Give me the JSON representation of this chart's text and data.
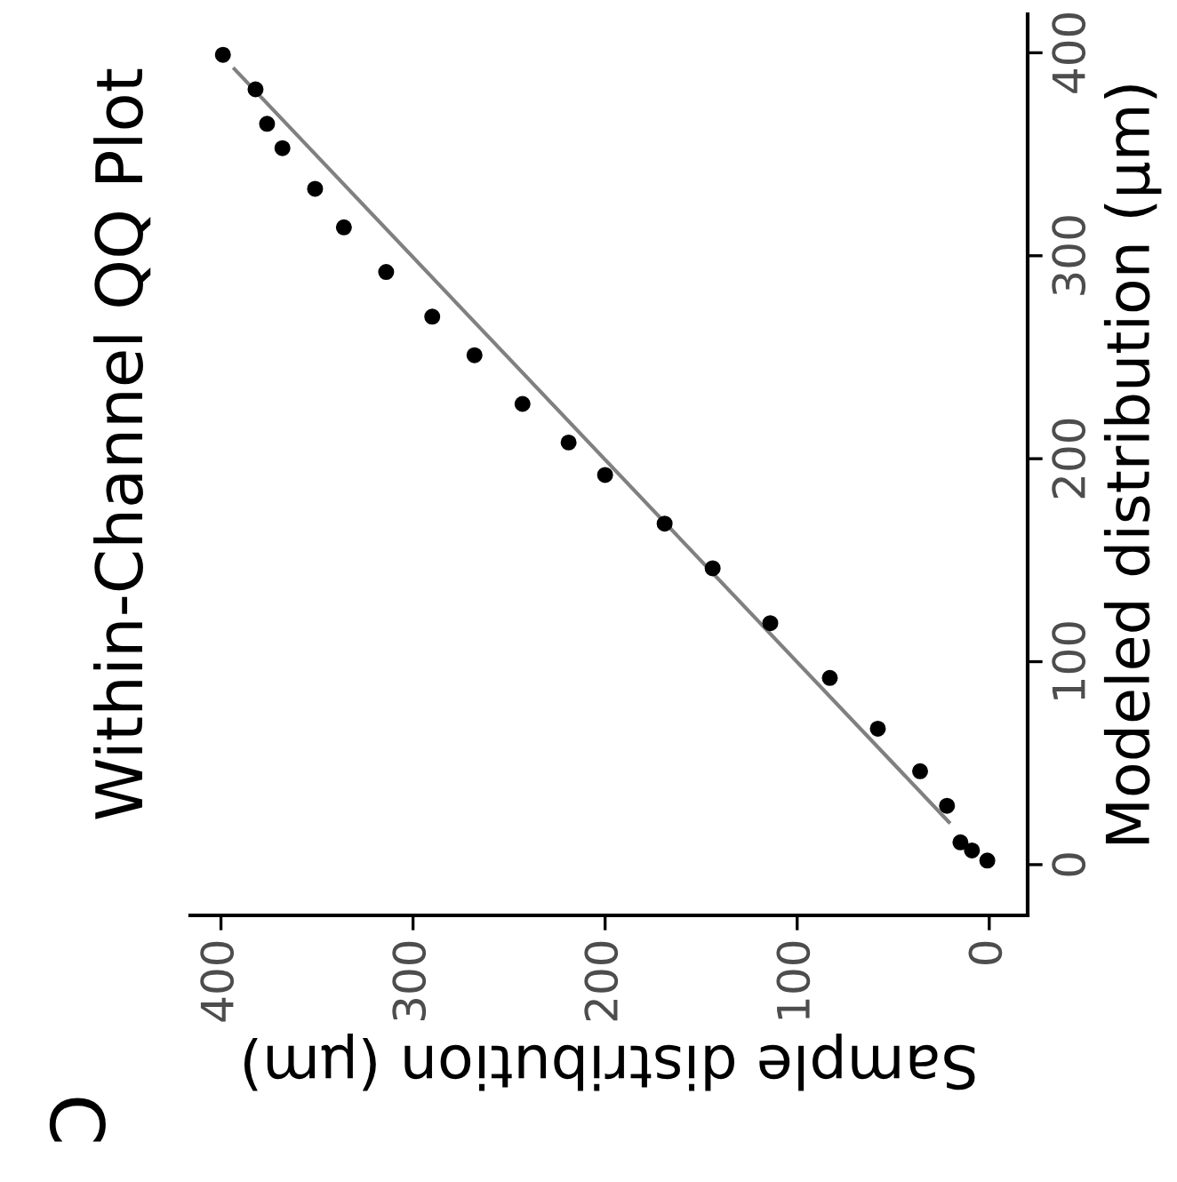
{
  "chart_data": {
    "type": "scatter",
    "title": "Within-Channel QQ Plot",
    "xlabel": "Sample distribution (μm)",
    "ylabel": "Modeled distribution (μm)",
    "annotations": [
      "C"
    ],
    "xlim": [
      416,
      -20
    ],
    "xticks": [
      0,
      100,
      200,
      300,
      400
    ],
    "ylim": [
      -25,
      419
    ],
    "yticks": [
      0,
      100,
      200,
      300,
      400
    ],
    "grid": false,
    "legend": false,
    "series": [
      {
        "type": "line",
        "marker": "none",
        "color": "#808080",
        "x": [
          393,
          21
        ],
        "values": [
          392,
          21
        ]
      },
      {
        "marker": "circle",
        "color": "#000000",
        "x": [
          399,
          382,
          376,
          368,
          351,
          336,
          314,
          290,
          268,
          243,
          219,
          200,
          169,
          144,
          114,
          83,
          58,
          36,
          22,
          15,
          9,
          1
        ],
        "values": [
          399,
          382,
          365,
          353,
          333,
          314,
          292,
          270,
          251,
          227,
          208,
          192,
          168,
          146,
          119,
          92,
          67,
          46,
          29,
          11,
          7,
          2
        ]
      }
    ]
  }
}
